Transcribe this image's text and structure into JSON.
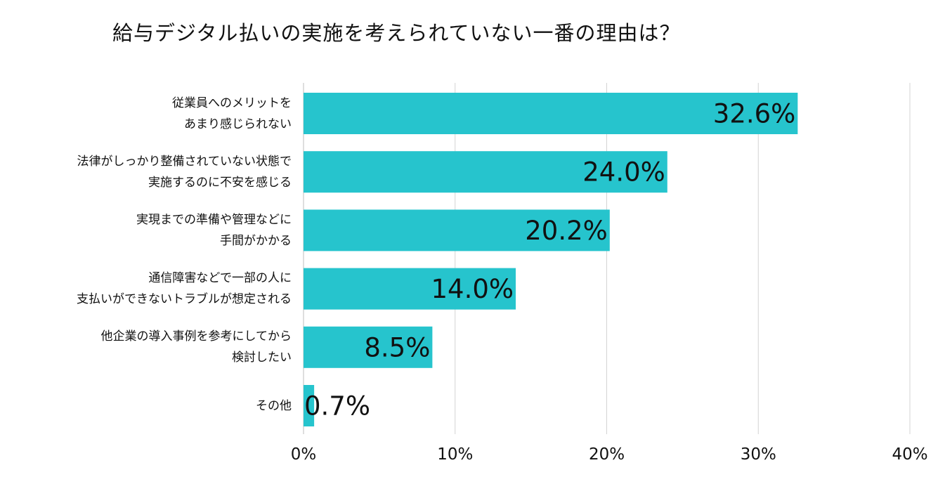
{
  "chart_data": {
    "type": "bar",
    "orientation": "horizontal",
    "title": "給与デジタル払いの実施を考えられていない一番の理由は？",
    "categories": [
      [
        "従業員へのメリットを",
        "あまり感じられない"
      ],
      [
        "法律がしっかり整備されていない状態で",
        "実施するのに不安を感じる"
      ],
      [
        "実現までの準備や管理などに",
        "手間がかかる"
      ],
      [
        "通信障害などで一部の人に",
        "支払いができないトラブルが想定される"
      ],
      [
        "他企業の導入事例を参考にしてから",
        "検討したい"
      ],
      [
        "その他"
      ]
    ],
    "values": [
      32.6,
      24.0,
      20.2,
      14.0,
      8.5,
      0.7
    ],
    "data_labels": [
      "32.6%",
      "24.0%",
      "20.2%",
      "14.0%",
      "8.5%",
      "0.7%"
    ],
    "xlim": [
      0,
      40
    ],
    "x_ticks": [
      "0%",
      "10%",
      "20%",
      "30%",
      "40%"
    ],
    "x_tick_values": [
      0,
      10,
      20,
      30,
      40
    ],
    "grid": true,
    "bar_color": "#26c4cd",
    "grid_color": "#d3d3d3",
    "text_color": "#111111"
  }
}
